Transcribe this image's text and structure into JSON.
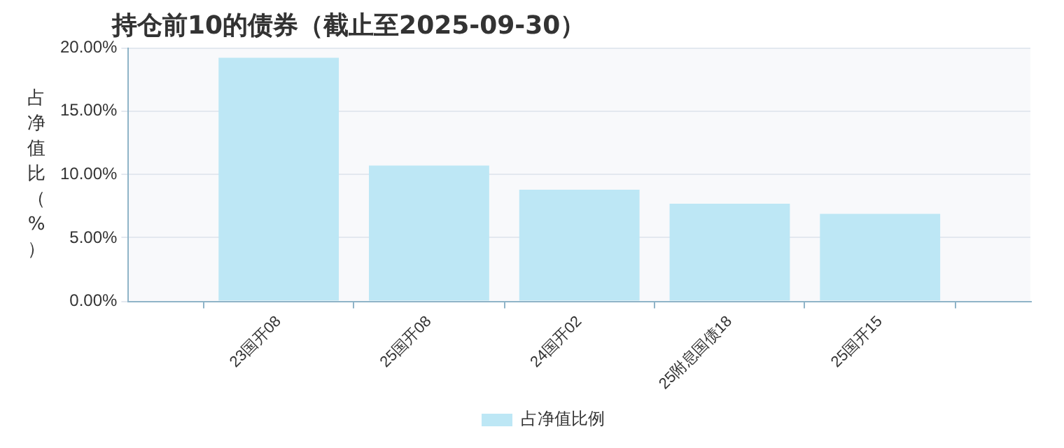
{
  "chart_data": {
    "type": "bar",
    "title": "持仓前10的债券（截止至2025-09-30）",
    "ylabel": "占净值比（%）",
    "categories": [
      "23国开08",
      "25国开08",
      "24国开02",
      "25附息国债18",
      "25国开15"
    ],
    "series": [
      {
        "name": "占净值比例",
        "color": "#bde7f5",
        "values": [
          19.2,
          10.7,
          8.8,
          7.7,
          6.9
        ]
      }
    ],
    "ylim": [
      0,
      20
    ],
    "yticks": [
      {
        "value": 0,
        "label": "0.00%"
      },
      {
        "value": 5,
        "label": "5.00%"
      },
      {
        "value": 10,
        "label": "10.00%"
      },
      {
        "value": 15,
        "label": "15.00%"
      },
      {
        "value": 20,
        "label": "20.00%"
      }
    ],
    "grid": "y",
    "legend": "bottom"
  }
}
